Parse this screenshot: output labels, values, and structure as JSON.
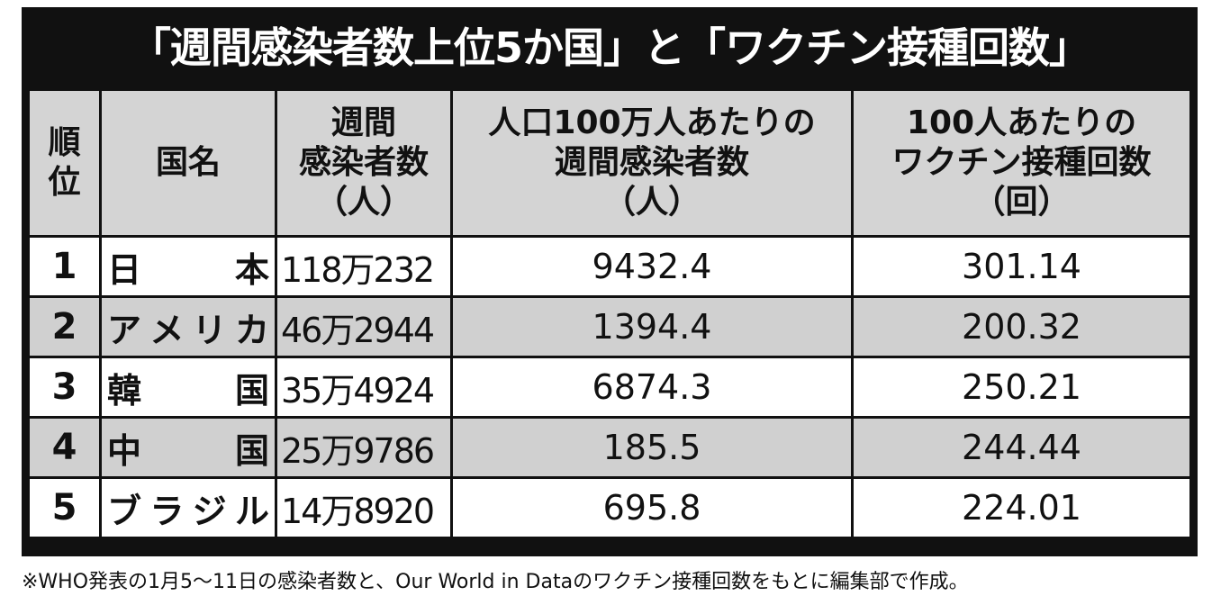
{
  "title": "「週間感染者数上位5か国」と「ワクチン接種回数」",
  "table": {
    "header": [
      [
        "順",
        "位"
      ],
      [
        "国名"
      ],
      [
        "週間",
        "感染者数",
        "（人）"
      ],
      [
        "人口100万人あたりの",
        "週間感染者数",
        "（人）"
      ],
      [
        "100人あたりの",
        "ワクチン接種回数",
        "（回）"
      ]
    ],
    "rows": [
      [
        "1",
        "日本",
        "118万232",
        "9432.4",
        "301.14"
      ],
      [
        "2",
        "アメリカ",
        "46万2944",
        "1394.4",
        "200.32"
      ],
      [
        "3",
        "韓国",
        "35万4924",
        "6874.3",
        "250.21"
      ],
      [
        "4",
        "中国",
        "25万9786",
        "185.5",
        "244.44"
      ],
      [
        "5",
        "ブラジル",
        "14万8920",
        "695.8",
        "224.01"
      ]
    ]
  },
  "footnote": "※WHO発表の1月5～11日の感染者数と、Our World in Dataのワクチン接種回数をもとに編集部で作成。"
}
